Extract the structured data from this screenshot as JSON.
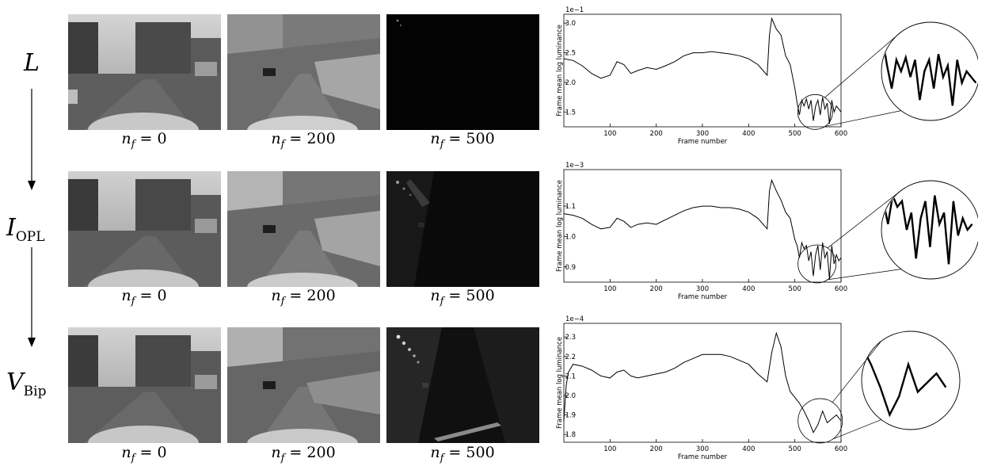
{
  "stages": [
    {
      "symbol": "L",
      "subscript": ""
    },
    {
      "symbol": "I",
      "subscript": "OPL"
    },
    {
      "symbol": "V",
      "subscript": "Bip"
    }
  ],
  "frame_labels": [
    {
      "var": "n",
      "sub": "f",
      "eq": " = 0"
    },
    {
      "var": "n",
      "sub": "f",
      "eq": " = 200"
    },
    {
      "var": "n",
      "sub": "f",
      "eq": " = 500"
    }
  ],
  "chart_data": [
    {
      "type": "line",
      "scale_label": "1e−1",
      "ylabel": "Frame mean log luminance",
      "xlabel": "Frame number",
      "xlim": [
        0,
        600
      ],
      "ylim": [
        1.25,
        3.15
      ],
      "xticks": [
        100,
        200,
        300,
        400,
        500,
        600
      ],
      "yticks": [
        1.5,
        1.8,
        2.0,
        2.5,
        3.0
      ],
      "yticklabels": [
        "1.5",
        "",
        "2.0",
        "2.5",
        "3.0"
      ],
      "yticks_used": [
        1.5,
        2.0,
        2.5,
        3.0
      ],
      "series": [
        {
          "x": [
            0,
            20,
            40,
            60,
            80,
            100,
            115,
            130,
            145,
            160,
            180,
            200,
            220,
            240,
            260,
            280,
            300,
            320,
            340,
            360,
            380,
            400,
            420,
            440,
            445,
            450,
            460,
            470,
            480,
            490,
            500,
            505,
            510,
            515,
            520,
            525,
            530,
            535,
            540,
            545,
            550,
            555,
            560,
            565,
            570,
            575,
            580,
            585,
            590,
            595,
            600
          ],
          "y": [
            2.4,
            2.37,
            2.28,
            2.15,
            2.07,
            2.12,
            2.35,
            2.3,
            2.15,
            2.2,
            2.25,
            2.22,
            2.28,
            2.35,
            2.45,
            2.5,
            2.5,
            2.52,
            2.5,
            2.48,
            2.45,
            2.4,
            2.3,
            2.12,
            2.8,
            3.08,
            2.9,
            2.8,
            2.45,
            2.3,
            1.9,
            1.65,
            1.45,
            1.7,
            1.6,
            1.72,
            1.55,
            1.7,
            1.35,
            1.6,
            1.7,
            1.45,
            1.75,
            1.55,
            1.65,
            1.3,
            1.7,
            1.5,
            1.6,
            1.55,
            1.5
          ]
        }
      ]
    },
    {
      "type": "line",
      "scale_label": "1e−3",
      "ylabel": "Frame mean log luminance",
      "xlabel": "Frame number",
      "xlim": [
        0,
        600
      ],
      "ylim": [
        0.85,
        1.22
      ],
      "xticks": [
        100,
        200,
        300,
        400,
        500,
        600
      ],
      "yticks_used": [
        0.9,
        1.0,
        1.1
      ],
      "series": [
        {
          "x": [
            0,
            20,
            40,
            60,
            80,
            100,
            115,
            130,
            145,
            160,
            180,
            200,
            220,
            240,
            260,
            280,
            300,
            320,
            340,
            360,
            380,
            400,
            420,
            440,
            445,
            450,
            460,
            470,
            480,
            490,
            500,
            505,
            510,
            515,
            520,
            525,
            530,
            535,
            540,
            545,
            550,
            555,
            560,
            565,
            570,
            575,
            580,
            585,
            590,
            595,
            600
          ],
          "y": [
            1.075,
            1.07,
            1.06,
            1.04,
            1.025,
            1.03,
            1.06,
            1.05,
            1.03,
            1.04,
            1.045,
            1.04,
            1.055,
            1.07,
            1.085,
            1.095,
            1.1,
            1.1,
            1.095,
            1.095,
            1.09,
            1.08,
            1.06,
            1.025,
            1.15,
            1.185,
            1.15,
            1.12,
            1.08,
            1.06,
            0.99,
            0.97,
            0.93,
            0.98,
            0.96,
            0.97,
            0.92,
            0.95,
            0.87,
            0.94,
            0.97,
            0.89,
            0.98,
            0.93,
            0.95,
            0.86,
            0.97,
            0.91,
            0.94,
            0.92,
            0.93
          ]
        }
      ]
    },
    {
      "type": "line",
      "scale_label": "1e−4",
      "ylabel": "Frame mean log luminance",
      "xlabel": "Frame number",
      "xlim": [
        0,
        600
      ],
      "ylim": [
        1.76,
        2.37
      ],
      "xticks": [
        100,
        200,
        300,
        400,
        500,
        600
      ],
      "yticks_used": [
        1.8,
        1.9,
        2.0,
        2.1,
        2.2,
        2.3
      ],
      "series": [
        {
          "x": [
            0,
            5,
            10,
            20,
            40,
            60,
            80,
            100,
            115,
            130,
            145,
            160,
            180,
            200,
            220,
            240,
            260,
            280,
            300,
            320,
            340,
            360,
            380,
            400,
            420,
            440,
            450,
            460,
            470,
            480,
            490,
            500,
            510,
            520,
            530,
            540,
            550,
            560,
            570,
            580,
            590,
            600
          ],
          "y": [
            1.87,
            2.05,
            2.12,
            2.16,
            2.15,
            2.13,
            2.1,
            2.09,
            2.12,
            2.13,
            2.1,
            2.09,
            2.1,
            2.11,
            2.12,
            2.14,
            2.17,
            2.19,
            2.21,
            2.21,
            2.21,
            2.2,
            2.18,
            2.16,
            2.11,
            2.07,
            2.22,
            2.32,
            2.25,
            2.1,
            2.02,
            1.99,
            1.96,
            1.92,
            1.87,
            1.81,
            1.85,
            1.92,
            1.86,
            1.88,
            1.9,
            1.87
          ]
        }
      ]
    }
  ]
}
